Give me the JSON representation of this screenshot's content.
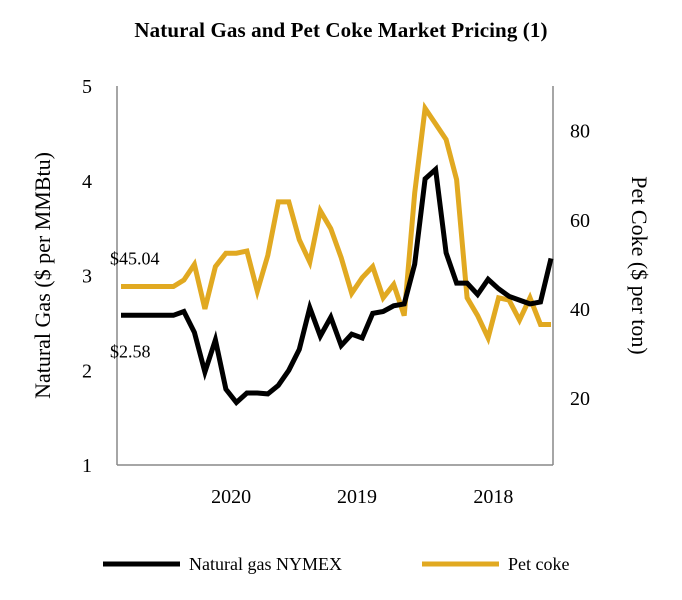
{
  "chart_data": {
    "type": "line",
    "title": "Natural Gas and Pet Coke Market Pricing (1)",
    "ylabel": "Natural Gas ($ per MMBtu)",
    "y2label": "Pet Coke ($ per ton)",
    "xlabel": "",
    "ylim": [
      1,
      5
    ],
    "y2lim": [
      5,
      90
    ],
    "yticks": [
      "1",
      "2",
      "3",
      "4",
      "5"
    ],
    "y2ticks": [
      "20",
      "40",
      "60",
      "80"
    ],
    "xlim": [
      0,
      41
    ],
    "xticks": [
      {
        "label": "2020",
        "x": 10.5
      },
      {
        "label": "2019",
        "x": 22.5
      },
      {
        "label": "2018",
        "x": 35.5
      }
    ],
    "grid": false,
    "legend_position": "bottom",
    "series": [
      {
        "name": "Natural gas NYMEX",
        "axis": "left",
        "color": "#000000",
        "x": [
          0,
          1,
          2,
          3,
          4,
          5,
          6,
          7,
          8,
          9,
          10,
          11,
          12,
          13,
          14,
          15,
          16,
          17,
          18,
          19,
          20,
          21,
          22,
          23,
          24,
          25,
          26,
          27,
          28,
          29,
          30,
          31,
          32,
          33,
          34,
          35,
          36,
          37,
          38,
          39,
          40,
          41
        ],
        "values": [
          2.58,
          2.58,
          2.58,
          2.58,
          2.58,
          2.58,
          2.62,
          2.4,
          1.98,
          2.32,
          1.8,
          1.66,
          1.76,
          1.76,
          1.75,
          1.84,
          2.0,
          2.22,
          2.66,
          2.36,
          2.56,
          2.26,
          2.38,
          2.34,
          2.6,
          2.62,
          2.68,
          2.7,
          3.12,
          4.02,
          4.12,
          3.24,
          2.92,
          2.92,
          2.8,
          2.96,
          2.86,
          2.78,
          2.74,
          2.7,
          2.72,
          3.18
        ]
      },
      {
        "name": "Pet coke",
        "axis": "right",
        "color": "#E1A921",
        "x": [
          0,
          1,
          2,
          3,
          4,
          5,
          6,
          7,
          8,
          9,
          10,
          11,
          12,
          13,
          14,
          15,
          16,
          17,
          18,
          19,
          20,
          21,
          22,
          23,
          24,
          25,
          26,
          27,
          28,
          29,
          30,
          31,
          32,
          33,
          34,
          35,
          36,
          37,
          38,
          39,
          40,
          41
        ],
        "values": [
          45.04,
          45.04,
          45.04,
          45.04,
          45.04,
          45.04,
          46.5,
          50.0,
          40.0,
          49.5,
          52.5,
          52.5,
          53.0,
          44.0,
          52.0,
          64.0,
          64.0,
          55.5,
          50.5,
          62.0,
          58.0,
          51.5,
          43.5,
          47.0,
          49.5,
          42.5,
          45.5,
          38.5,
          66.0,
          85.0,
          81.5,
          78.0,
          69.0,
          42.5,
          38.5,
          33.5,
          42.5,
          42.0,
          37.5,
          42.5,
          36.5,
          36.5
        ]
      }
    ],
    "annotations": [
      {
        "text": "$45.04",
        "series": "Pet coke",
        "x": 0,
        "value": 45.04
      },
      {
        "text": "$2.58",
        "series": "Natural gas NYMEX",
        "x": 0,
        "value": 2.58
      }
    ]
  }
}
